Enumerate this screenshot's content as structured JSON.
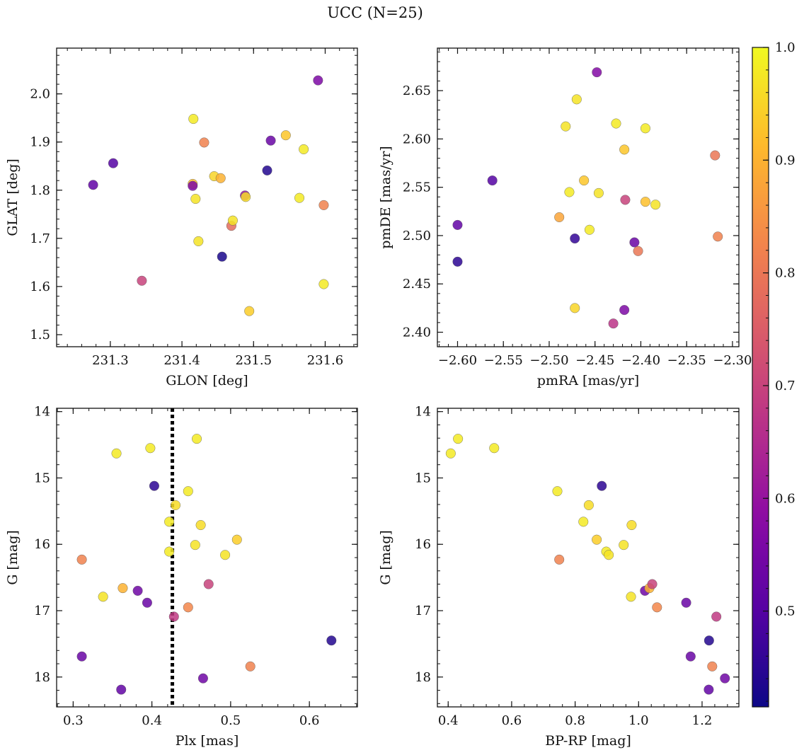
{
  "figure": {
    "suptitle": "UCC (N=25)"
  },
  "colorbar": {
    "colormap": "plasma",
    "range": [
      0.415,
      1.0
    ],
    "ticks": [
      0.5,
      0.6,
      0.7,
      0.8,
      0.9,
      1.0
    ],
    "tick_labels": [
      "0.5",
      "0.6",
      "0.7",
      "0.8",
      "0.9",
      "1.0"
    ]
  },
  "chart_data": [
    {
      "type": "scatter",
      "id": "glon-glat",
      "xlabel": "GLON [deg]",
      "ylabel": "GLAT [deg]",
      "xlim": [
        231.225,
        231.645
      ],
      "ylim": [
        1.475,
        2.095
      ],
      "invert_y": false,
      "xticks": [
        231.3,
        231.4,
        231.5,
        231.6
      ],
      "xtick_labels": [
        "231.3",
        "231.4",
        "231.5",
        "231.6"
      ],
      "yticks": [
        1.5,
        1.6,
        1.7,
        1.8,
        1.9,
        2.0
      ],
      "ytick_labels": [
        "1.5",
        "1.6",
        "1.7",
        "1.8",
        "1.9",
        "2.0"
      ],
      "points": [
        {
          "x": 231.276,
          "y": 1.811,
          "c": 0.52
        },
        {
          "x": 231.304,
          "y": 1.856,
          "c": 0.5
        },
        {
          "x": 231.344,
          "y": 1.612,
          "c": 0.7
        },
        {
          "x": 231.416,
          "y": 1.948,
          "c": 0.98
        },
        {
          "x": 231.415,
          "y": 1.813,
          "c": 0.92
        },
        {
          "x": 231.415,
          "y": 1.809,
          "c": 0.56
        },
        {
          "x": 231.419,
          "y": 1.782,
          "c": 0.97
        },
        {
          "x": 231.423,
          "y": 1.694,
          "c": 0.97
        },
        {
          "x": 231.431,
          "y": 1.899,
          "c": 0.82
        },
        {
          "x": 231.445,
          "y": 1.829,
          "c": 0.95
        },
        {
          "x": 231.454,
          "y": 1.825,
          "c": 0.9
        },
        {
          "x": 231.456,
          "y": 1.662,
          "c": 0.43
        },
        {
          "x": 231.469,
          "y": 1.726,
          "c": 0.78
        },
        {
          "x": 231.471,
          "y": 1.737,
          "c": 0.97
        },
        {
          "x": 231.488,
          "y": 1.789,
          "c": 0.6
        },
        {
          "x": 231.489,
          "y": 1.786,
          "c": 0.96
        },
        {
          "x": 231.494,
          "y": 1.549,
          "c": 0.94
        },
        {
          "x": 231.519,
          "y": 1.841,
          "c": 0.44
        },
        {
          "x": 231.524,
          "y": 1.903,
          "c": 0.53
        },
        {
          "x": 231.545,
          "y": 1.914,
          "c": 0.93
        },
        {
          "x": 231.564,
          "y": 1.784,
          "c": 0.98
        },
        {
          "x": 231.57,
          "y": 1.885,
          "c": 0.98
        },
        {
          "x": 231.59,
          "y": 2.028,
          "c": 0.56
        },
        {
          "x": 231.598,
          "y": 1.605,
          "c": 0.98
        },
        {
          "x": 231.598,
          "y": 1.769,
          "c": 0.82
        }
      ]
    },
    {
      "type": "scatter",
      "id": "pmra-pmde",
      "xlabel": "pmRA [mas/yr]",
      "ylabel": "pmDE [mas/yr]",
      "xlim": [
        -2.622,
        -2.293
      ],
      "ylim": [
        2.385,
        2.694
      ],
      "invert_y": false,
      "xticks": [
        -2.6,
        -2.55,
        -2.5,
        -2.45,
        -2.4,
        -2.35,
        -2.3
      ],
      "xtick_labels": [
        "−2.60",
        "−2.55",
        "−2.50",
        "−2.45",
        "−2.40",
        "−2.35",
        "−2.30"
      ],
      "yticks": [
        2.4,
        2.45,
        2.5,
        2.55,
        2.6,
        2.65
      ],
      "ytick_labels": [
        "2.40",
        "2.45",
        "2.50",
        "2.55",
        "2.60",
        "2.65"
      ],
      "points": [
        {
          "x": -2.6,
          "y": 2.511,
          "c": 0.52
        },
        {
          "x": -2.6,
          "y": 2.473,
          "c": 0.45
        },
        {
          "x": -2.562,
          "y": 2.557,
          "c": 0.5
        },
        {
          "x": -2.489,
          "y": 2.519,
          "c": 0.88
        },
        {
          "x": -2.482,
          "y": 2.613,
          "c": 0.97
        },
        {
          "x": -2.478,
          "y": 2.545,
          "c": 0.98
        },
        {
          "x": -2.472,
          "y": 2.425,
          "c": 0.95
        },
        {
          "x": -2.472,
          "y": 2.497,
          "c": 0.46
        },
        {
          "x": -2.47,
          "y": 2.641,
          "c": 0.97
        },
        {
          "x": -2.462,
          "y": 2.557,
          "c": 0.93
        },
        {
          "x": -2.456,
          "y": 2.506,
          "c": 0.98
        },
        {
          "x": -2.448,
          "y": 2.669,
          "c": 0.57
        },
        {
          "x": -2.446,
          "y": 2.544,
          "c": 0.97
        },
        {
          "x": -2.427,
          "y": 2.616,
          "c": 0.98
        },
        {
          "x": -2.43,
          "y": 2.409,
          "c": 0.67
        },
        {
          "x": -2.418,
          "y": 2.589,
          "c": 0.93
        },
        {
          "x": -2.418,
          "y": 2.423,
          "c": 0.56
        },
        {
          "x": -2.417,
          "y": 2.537,
          "c": 0.7
        },
        {
          "x": -2.407,
          "y": 2.493,
          "c": 0.53
        },
        {
          "x": -2.403,
          "y": 2.484,
          "c": 0.8
        },
        {
          "x": -2.395,
          "y": 2.535,
          "c": 0.92
        },
        {
          "x": -2.395,
          "y": 2.611,
          "c": 0.98
        },
        {
          "x": -2.384,
          "y": 2.532,
          "c": 0.97
        },
        {
          "x": -2.319,
          "y": 2.583,
          "c": 0.8
        },
        {
          "x": -2.316,
          "y": 2.499,
          "c": 0.82
        }
      ]
    },
    {
      "type": "scatter",
      "id": "plx-g",
      "xlabel": "Plx [mas]",
      "ylabel": "G [mag]",
      "xlim": [
        0.279,
        0.661
      ],
      "ylim": [
        13.95,
        18.45
      ],
      "invert_y": true,
      "vline": {
        "x": 0.426,
        "style": "dotted"
      },
      "xticks": [
        0.3,
        0.4,
        0.5,
        0.6
      ],
      "xtick_labels": [
        "0.3",
        "0.4",
        "0.5",
        "0.6"
      ],
      "yticks": [
        14,
        15,
        16,
        17,
        18
      ],
      "ytick_labels": [
        "14",
        "15",
        "16",
        "17",
        "18"
      ],
      "points": [
        {
          "x": 0.311,
          "y": 16.23,
          "c": 0.82
        },
        {
          "x": 0.311,
          "y": 17.69,
          "c": 0.53
        },
        {
          "x": 0.338,
          "y": 16.79,
          "c": 0.97
        },
        {
          "x": 0.355,
          "y": 14.63,
          "c": 0.98
        },
        {
          "x": 0.361,
          "y": 18.19,
          "c": 0.52
        },
        {
          "x": 0.363,
          "y": 16.66,
          "c": 0.9
        },
        {
          "x": 0.382,
          "y": 16.7,
          "c": 0.54
        },
        {
          "x": 0.394,
          "y": 16.88,
          "c": 0.53
        },
        {
          "x": 0.398,
          "y": 14.55,
          "c": 0.98
        },
        {
          "x": 0.403,
          "y": 15.12,
          "c": 0.45
        },
        {
          "x": 0.422,
          "y": 15.66,
          "c": 0.98
        },
        {
          "x": 0.422,
          "y": 16.11,
          "c": 0.98
        },
        {
          "x": 0.428,
          "y": 17.09,
          "c": 0.68
        },
        {
          "x": 0.43,
          "y": 15.41,
          "c": 0.96
        },
        {
          "x": 0.446,
          "y": 15.2,
          "c": 0.98
        },
        {
          "x": 0.446,
          "y": 16.95,
          "c": 0.83
        },
        {
          "x": 0.455,
          "y": 16.01,
          "c": 0.97
        },
        {
          "x": 0.457,
          "y": 14.41,
          "c": 0.98
        },
        {
          "x": 0.462,
          "y": 15.71,
          "c": 0.96
        },
        {
          "x": 0.465,
          "y": 18.02,
          "c": 0.54
        },
        {
          "x": 0.472,
          "y": 16.6,
          "c": 0.7
        },
        {
          "x": 0.493,
          "y": 16.16,
          "c": 0.97
        },
        {
          "x": 0.508,
          "y": 15.93,
          "c": 0.94
        },
        {
          "x": 0.525,
          "y": 17.84,
          "c": 0.82
        },
        {
          "x": 0.628,
          "y": 17.45,
          "c": 0.44
        }
      ]
    },
    {
      "type": "scatter",
      "id": "bprp-g",
      "xlabel": "BP-RP [mag]",
      "ylabel": "G [mag]",
      "xlim": [
        0.366,
        1.316
      ],
      "ylim": [
        13.95,
        18.45
      ],
      "invert_y": true,
      "xticks": [
        0.4,
        0.6,
        0.8,
        1.0,
        1.2
      ],
      "xtick_labels": [
        "0.4",
        "0.6",
        "0.8",
        "1.0",
        "1.2"
      ],
      "yticks": [
        14,
        15,
        16,
        17,
        18
      ],
      "ytick_labels": [
        "14",
        "15",
        "16",
        "17",
        "18"
      ],
      "points": [
        {
          "x": 0.408,
          "y": 14.63,
          "c": 0.98
        },
        {
          "x": 0.431,
          "y": 14.41,
          "c": 0.98
        },
        {
          "x": 0.545,
          "y": 14.55,
          "c": 0.98
        },
        {
          "x": 0.744,
          "y": 15.2,
          "c": 0.98
        },
        {
          "x": 0.75,
          "y": 16.23,
          "c": 0.82
        },
        {
          "x": 0.826,
          "y": 15.66,
          "c": 0.98
        },
        {
          "x": 0.843,
          "y": 15.41,
          "c": 0.96
        },
        {
          "x": 0.868,
          "y": 15.93,
          "c": 0.94
        },
        {
          "x": 0.884,
          "y": 15.12,
          "c": 0.45
        },
        {
          "x": 0.898,
          "y": 16.11,
          "c": 0.98
        },
        {
          "x": 0.906,
          "y": 16.16,
          "c": 0.97
        },
        {
          "x": 0.953,
          "y": 16.01,
          "c": 0.97
        },
        {
          "x": 0.976,
          "y": 16.79,
          "c": 0.97
        },
        {
          "x": 0.978,
          "y": 15.71,
          "c": 0.96
        },
        {
          "x": 1.02,
          "y": 16.7,
          "c": 0.54
        },
        {
          "x": 1.034,
          "y": 16.66,
          "c": 0.9
        },
        {
          "x": 1.043,
          "y": 16.6,
          "c": 0.7
        },
        {
          "x": 1.058,
          "y": 16.95,
          "c": 0.83
        },
        {
          "x": 1.15,
          "y": 16.88,
          "c": 0.53
        },
        {
          "x": 1.164,
          "y": 17.69,
          "c": 0.53
        },
        {
          "x": 1.222,
          "y": 17.45,
          "c": 0.44
        },
        {
          "x": 1.221,
          "y": 18.19,
          "c": 0.52
        },
        {
          "x": 1.232,
          "y": 17.84,
          "c": 0.82
        },
        {
          "x": 1.245,
          "y": 17.09,
          "c": 0.68
        },
        {
          "x": 1.272,
          "y": 18.02,
          "c": 0.54
        }
      ]
    }
  ]
}
